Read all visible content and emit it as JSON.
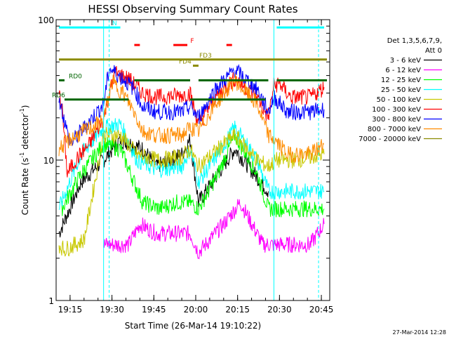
{
  "chart_data": {
    "type": "line",
    "title": "HESSI Observing Summary Count Rates",
    "xlabel": "Start Time (26-Mar-14 19:10:22)",
    "ylabel_main": "Count Rate (s",
    "ylabel_sup1": "-1",
    "ylabel_mid": " detector",
    "ylabel_sup2": "-1",
    "ylabel_end": ")",
    "y_scale": "log",
    "ylim": [
      1,
      100
    ],
    "xlim": [
      "19:10",
      "20:48"
    ],
    "x_ticks": [
      "19:15",
      "19:30",
      "19:45",
      "20:00",
      "20:15",
      "20:30",
      "20:45"
    ],
    "y_ticks": [
      "1",
      "10",
      "100"
    ],
    "footer_date": "27-Mar-2014 12:28",
    "legend": {
      "position": "right",
      "header1": "Det 1,3,5,6,7,9,",
      "header2": "Att 0",
      "entries": [
        {
          "label": "3 - 6 keV",
          "color": "#000000"
        },
        {
          "label": "6 - 12 keV",
          "color": "#ff00ff"
        },
        {
          "label": "12 - 25 keV",
          "color": "#00ff00"
        },
        {
          "label": "25 - 50 keV",
          "color": "#00ffff"
        },
        {
          "label": "50 - 100 keV",
          "color": "#c8c800"
        },
        {
          "label": "100 - 300 keV",
          "color": "#ff0000"
        },
        {
          "label": "300 - 800 keV",
          "color": "#0000ff"
        },
        {
          "label": "800 - 7000 keV",
          "color": "#ff8c00"
        },
        {
          "label": "7000 - 20000 keV",
          "color": "#8b8b00"
        }
      ]
    },
    "flag_lines": [
      {
        "label": "N",
        "color": "#00ffff",
        "segments": [
          [
            "19:11",
            "19:33"
          ],
          [
            "20:29",
            "20:46"
          ]
        ],
        "y": 88
      },
      {
        "label": "F",
        "color": "#ff0000",
        "segments": [
          [
            "19:38",
            "19:40"
          ],
          [
            "19:52",
            "19:57"
          ],
          [
            "20:11",
            "20:13"
          ]
        ],
        "y": 66
      },
      {
        "label": "FD3",
        "color": "#8b8b00",
        "segments": [
          [
            "19:11",
            "20:47"
          ]
        ],
        "y": 52
      },
      {
        "label": "FD4",
        "color": "#8b8b00",
        "segments": [
          [
            "19:59",
            "20:01"
          ]
        ],
        "y": 47
      },
      {
        "label": "RD0",
        "color": "#006400",
        "segments": [
          [
            "19:11",
            "19:13"
          ],
          [
            "19:38",
            "19:58"
          ],
          [
            "20:01",
            "20:26"
          ],
          [
            "20:29",
            "20:47"
          ]
        ],
        "y": 37
      },
      {
        "label": "RD6",
        "color": "#006400",
        "segments": [
          [
            "19:13",
            "19:36"
          ],
          [
            "19:58",
            "20:25"
          ]
        ],
        "y": 27
      }
    ],
    "boundaries": {
      "solid": [
        "19:27",
        "20:28"
      ],
      "dashed": [
        "19:29",
        "20:44"
      ]
    },
    "series": [
      {
        "name": "3 - 6 keV",
        "color": "#000000",
        "points": [
          [
            "19:11",
            3
          ],
          [
            "19:19",
            7
          ],
          [
            "19:27",
            10
          ],
          [
            "19:33",
            14
          ],
          [
            "19:41",
            12
          ],
          [
            "19:46",
            9
          ],
          [
            "19:55",
            11
          ],
          [
            "19:58",
            14
          ],
          [
            "20:01",
            5
          ],
          [
            "20:14",
            12
          ],
          [
            "20:26",
            6
          ]
        ]
      },
      {
        "name": "6 - 12 keV",
        "color": "#ff00ff",
        "points": [
          [
            "19:27",
            2.5
          ],
          [
            "19:36",
            2.5
          ],
          [
            "19:40",
            3.5
          ],
          [
            "19:46",
            3
          ],
          [
            "19:58",
            3
          ],
          [
            "20:01",
            2.2
          ],
          [
            "20:10",
            3.5
          ],
          [
            "20:16",
            5
          ],
          [
            "20:24",
            2.5
          ],
          [
            "20:28",
            2.5
          ],
          [
            "20:34",
            2.5
          ],
          [
            "20:41",
            2.5
          ],
          [
            "20:46",
            3.5
          ]
        ]
      },
      {
        "name": "12 - 25 keV",
        "color": "#00ff00",
        "points": [
          [
            "19:12",
            4.5
          ],
          [
            "19:19",
            8
          ],
          [
            "19:27",
            13
          ],
          [
            "19:33",
            12
          ],
          [
            "19:41",
            5
          ],
          [
            "19:47",
            4.5
          ],
          [
            "19:53",
            5
          ],
          [
            "19:58",
            5
          ],
          [
            "20:01",
            4.5
          ],
          [
            "20:08",
            8
          ],
          [
            "20:14",
            15
          ],
          [
            "20:22",
            8
          ],
          [
            "20:26",
            4.5
          ],
          [
            "20:28",
            4.5
          ],
          [
            "20:46",
            4.5
          ]
        ]
      },
      {
        "name": "25 - 50 keV",
        "color": "#00ffff",
        "points": [
          [
            "19:11",
            4.5
          ],
          [
            "19:19",
            11
          ],
          [
            "19:27",
            17
          ],
          [
            "19:33",
            18
          ],
          [
            "19:39",
            10
          ],
          [
            "19:46",
            8.5
          ],
          [
            "19:55",
            9
          ],
          [
            "19:58",
            12
          ],
          [
            "20:01",
            7
          ],
          [
            "20:08",
            11
          ],
          [
            "20:14",
            17
          ],
          [
            "20:22",
            10
          ],
          [
            "20:26",
            6
          ],
          [
            "20:28",
            6
          ],
          [
            "20:46",
            6
          ]
        ]
      },
      {
        "name": "50 - 100 keV",
        "color": "#c8c800",
        "points": [
          [
            "19:11",
            2.5
          ],
          [
            "19:13",
            2.3
          ],
          [
            "19:20",
            2.7
          ],
          [
            "19:27",
            15
          ],
          [
            "19:33",
            15
          ],
          [
            "19:39",
            11
          ],
          [
            "19:46",
            10
          ],
          [
            "19:55",
            10.5
          ],
          [
            "19:58",
            12
          ],
          [
            "20:01",
            9
          ],
          [
            "20:08",
            12
          ],
          [
            "20:14",
            15
          ],
          [
            "20:22",
            10
          ],
          [
            "20:26",
            9
          ],
          [
            "20:29",
            10
          ],
          [
            "20:36",
            10
          ],
          [
            "20:46",
            11
          ]
        ]
      },
      {
        "name": "100 - 300 keV",
        "color": "#ff0000",
        "points": [
          [
            "19:11",
            30
          ],
          [
            "19:12",
            25
          ],
          [
            "19:14",
            8
          ],
          [
            "19:17",
            10
          ],
          [
            "19:22",
            13
          ],
          [
            "19:27",
            20
          ],
          [
            "19:31",
            42
          ],
          [
            "19:36",
            38
          ],
          [
            "19:41",
            30
          ],
          [
            "19:46",
            28
          ],
          [
            "19:55",
            29
          ],
          [
            "19:58",
            30
          ],
          [
            "20:01",
            18
          ],
          [
            "20:07",
            28
          ],
          [
            "20:14",
            38
          ],
          [
            "20:22",
            28
          ],
          [
            "20:26",
            20
          ],
          [
            "20:28",
            34
          ],
          [
            "20:30",
            35
          ],
          [
            "20:34",
            28
          ],
          [
            "20:41",
            28
          ],
          [
            "20:46",
            33
          ]
        ]
      },
      {
        "name": "300 - 800 keV",
        "color": "#0000ff",
        "points": [
          [
            "19:11",
            28
          ],
          [
            "19:15",
            13
          ],
          [
            "19:20",
            17
          ],
          [
            "19:27",
            25
          ],
          [
            "19:29",
            45
          ],
          [
            "19:34",
            38
          ],
          [
            "19:38",
            32
          ],
          [
            "19:41",
            24
          ],
          [
            "19:46",
            22
          ],
          [
            "19:55",
            22
          ],
          [
            "19:58",
            24
          ],
          [
            "20:01",
            20
          ],
          [
            "20:07",
            32
          ],
          [
            "20:14",
            44
          ],
          [
            "20:22",
            32
          ],
          [
            "20:26",
            22
          ],
          [
            "20:28",
            28
          ],
          [
            "20:33",
            22
          ],
          [
            "20:41",
            22
          ],
          [
            "20:46",
            23
          ]
        ]
      },
      {
        "name": "800 - 7000 keV",
        "color": "#ff8c00",
        "points": [
          [
            "19:11",
            12
          ],
          [
            "19:15",
            14
          ],
          [
            "19:20",
            16
          ],
          [
            "19:27",
            19
          ],
          [
            "19:30",
            36
          ],
          [
            "19:34",
            30
          ],
          [
            "19:38",
            22
          ],
          [
            "19:41",
            16
          ],
          [
            "19:46",
            15
          ],
          [
            "19:55",
            15
          ],
          [
            "19:58",
            17
          ],
          [
            "20:01",
            16
          ],
          [
            "20:07",
            25
          ],
          [
            "20:14",
            37
          ],
          [
            "20:22",
            25
          ],
          [
            "20:26",
            15
          ],
          [
            "20:28",
            14
          ],
          [
            "20:33",
            11
          ],
          [
            "20:41",
            11
          ],
          [
            "20:46",
            13
          ]
        ]
      }
    ]
  }
}
